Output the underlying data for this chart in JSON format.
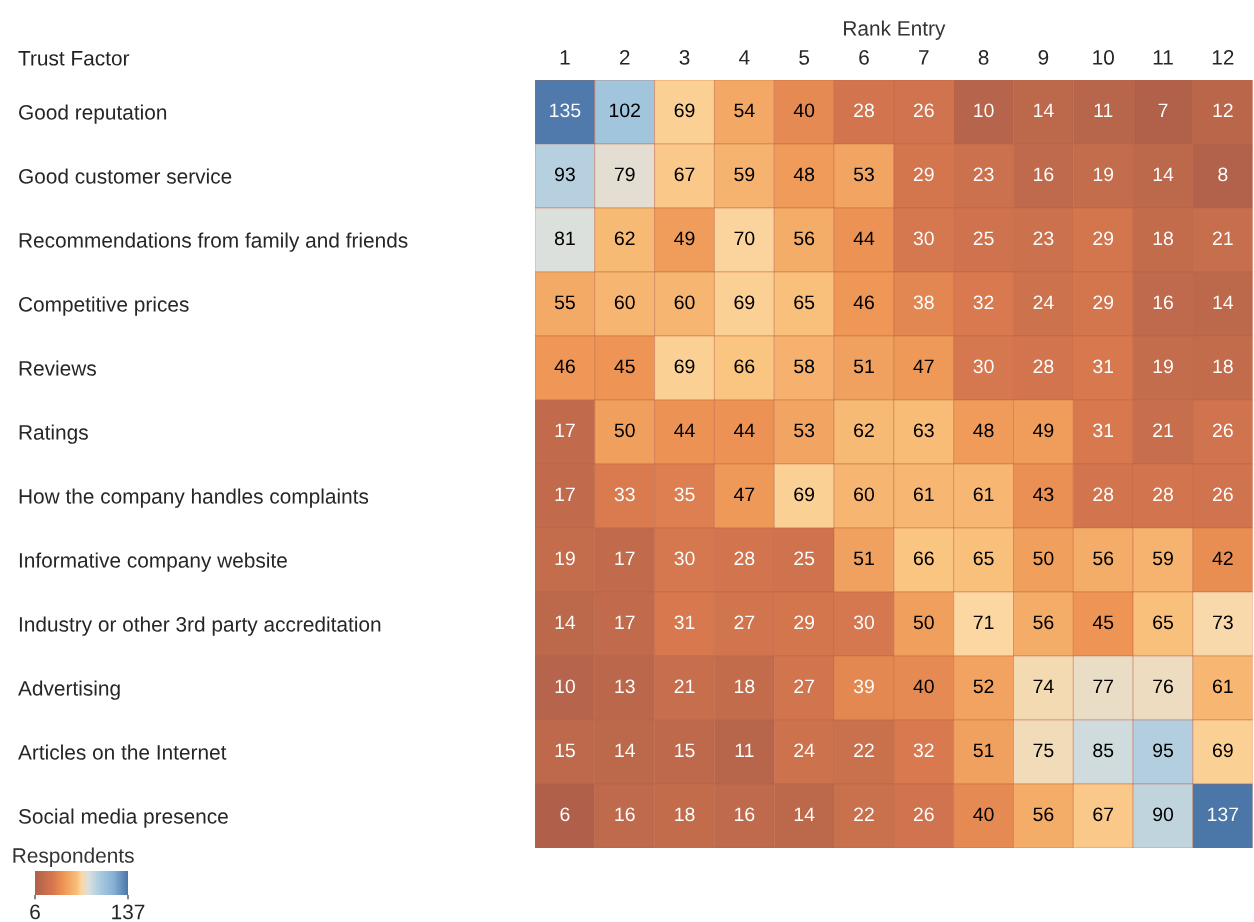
{
  "chart_data": {
    "type": "heatmap",
    "xlabel": "Rank Entry",
    "ylabel": "Trust Factor",
    "clabel": "Respondents",
    "categories": [
      "1",
      "2",
      "3",
      "4",
      "5",
      "6",
      "7",
      "8",
      "9",
      "10",
      "11",
      "12"
    ],
    "y_categories": [
      "Good reputation",
      "Good customer service",
      "Recommendations from family and friends",
      "Competitive prices",
      "Reviews",
      "Ratings",
      "How the company handles complaints",
      "Informative company website",
      "Industry or other 3rd party accreditation",
      "Advertising",
      "Articles on the Internet",
      "Social media presence"
    ],
    "cells": [
      [
        135,
        102,
        69,
        54,
        40,
        28,
        26,
        10,
        14,
        11,
        7,
        12
      ],
      [
        93,
        79,
        67,
        59,
        48,
        53,
        29,
        23,
        16,
        19,
        14,
        8
      ],
      [
        81,
        62,
        49,
        70,
        56,
        44,
        30,
        25,
        23,
        29,
        18,
        21
      ],
      [
        55,
        60,
        60,
        69,
        65,
        46,
        38,
        32,
        24,
        29,
        16,
        14
      ],
      [
        46,
        45,
        69,
        66,
        58,
        51,
        47,
        30,
        28,
        31,
        19,
        18
      ],
      [
        17,
        50,
        44,
        44,
        53,
        62,
        63,
        48,
        49,
        31,
        21,
        26
      ],
      [
        17,
        33,
        35,
        47,
        69,
        60,
        61,
        61,
        43,
        28,
        28,
        26
      ],
      [
        19,
        17,
        30,
        28,
        25,
        51,
        66,
        65,
        50,
        56,
        59,
        42
      ],
      [
        14,
        17,
        31,
        27,
        29,
        30,
        50,
        71,
        56,
        45,
        65,
        73
      ],
      [
        10,
        13,
        21,
        18,
        27,
        39,
        40,
        52,
        74,
        77,
        76,
        61
      ],
      [
        15,
        14,
        15,
        11,
        24,
        22,
        32,
        51,
        75,
        85,
        95,
        69
      ],
      [
        6,
        16,
        18,
        16,
        14,
        22,
        26,
        40,
        56,
        67,
        90,
        137
      ]
    ],
    "data_labels": true,
    "clim": [
      6,
      137
    ],
    "cticks": [
      6,
      137
    ]
  }
}
